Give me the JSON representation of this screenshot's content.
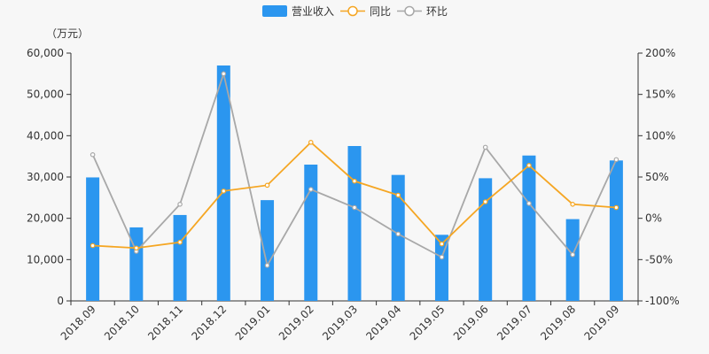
{
  "chart_data": {
    "type": "bar",
    "unit_label": "（万元）",
    "categories": [
      "2018.09",
      "2018.10",
      "2018.11",
      "2018.12",
      "2019.01",
      "2019.02",
      "2019.03",
      "2019.04",
      "2019.05",
      "2019.06",
      "2019.07",
      "2019.08",
      "2019.09"
    ],
    "series": [
      {
        "name": "营业收入",
        "type": "bar",
        "axis": "left",
        "color": "#2b96ef",
        "values": [
          29900,
          17800,
          20800,
          57000,
          24400,
          33000,
          37500,
          30500,
          16000,
          29700,
          35200,
          19800,
          34000
        ]
      },
      {
        "name": "同比",
        "type": "line",
        "axis": "right",
        "color": "#f5a623",
        "values": [
          -33,
          -36,
          -29,
          33,
          40,
          92,
          45,
          28,
          -31,
          20,
          64,
          17,
          13
        ]
      },
      {
        "name": "环比",
        "type": "line",
        "axis": "right",
        "color": "#a8a8a8",
        "values": [
          77,
          -40,
          17,
          175,
          -57,
          35,
          13,
          -19,
          -47,
          86,
          18,
          -44,
          71
        ]
      }
    ],
    "y_left": {
      "min": 0,
      "max": 60000,
      "ticks": [
        "0",
        "10,000",
        "20,000",
        "30,000",
        "40,000",
        "50,000",
        "60,000"
      ]
    },
    "y_right": {
      "min": -100,
      "max": 200,
      "ticks": [
        "-100%",
        "-50%",
        "0%",
        "50%",
        "100%",
        "150%",
        "200%"
      ]
    },
    "grid": false,
    "legend_position": "top-center"
  }
}
